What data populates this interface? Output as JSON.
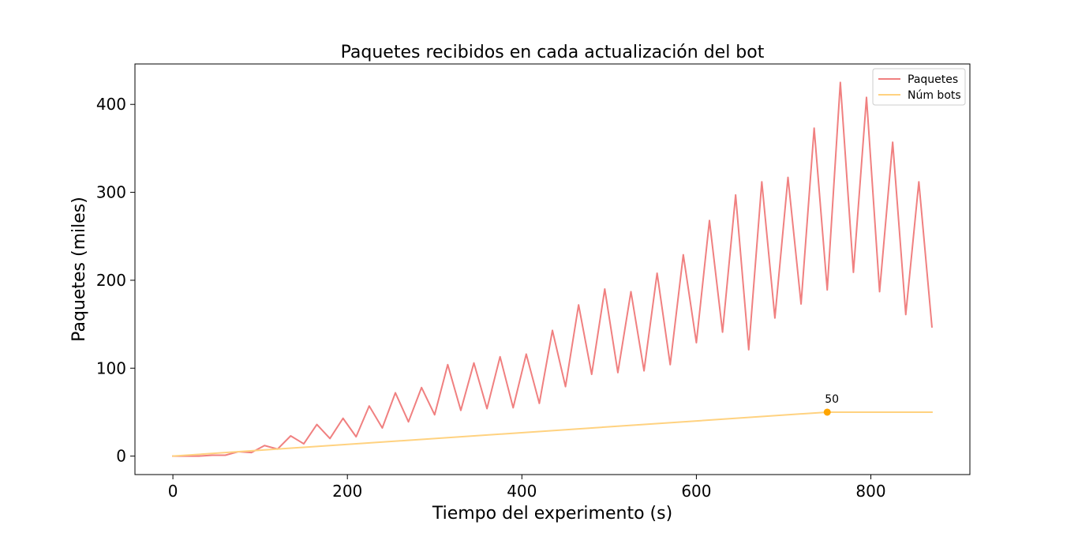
{
  "chart_data": {
    "type": "line",
    "title": "Paquetes recibidos en cada actualización del bot",
    "xlabel": "Tiempo del experimento (s)",
    "ylabel": "Paquetes (miles)",
    "xlim": [
      -43.5,
      913.5
    ],
    "ylim": [
      -21,
      446
    ],
    "xticks": [
      0,
      200,
      400,
      600,
      800
    ],
    "yticks": [
      0,
      100,
      200,
      300,
      400
    ],
    "grid": false,
    "legend_position": "upper right",
    "series": [
      {
        "name": "Paquetes",
        "color": "#f08080",
        "x": [
          0,
          15,
          30,
          45,
          60,
          75,
          90,
          105,
          120,
          135,
          150,
          165,
          180,
          195,
          210,
          225,
          240,
          255,
          270,
          285,
          300,
          315,
          330,
          345,
          360,
          375,
          390,
          405,
          420,
          435,
          450,
          465,
          480,
          495,
          510,
          525,
          540,
          555,
          570,
          585,
          600,
          615,
          630,
          645,
          660,
          675,
          690,
          705,
          720,
          735,
          750,
          765,
          780,
          795,
          810,
          825,
          840,
          855,
          870
        ],
        "y": [
          0,
          0,
          0,
          1,
          1,
          5,
          4,
          12,
          8,
          23,
          14,
          36,
          20,
          43,
          22,
          57,
          32,
          72,
          39,
          78,
          47,
          104,
          52,
          106,
          54,
          113,
          55,
          116,
          60,
          143,
          79,
          172,
          93,
          190,
          95,
          187,
          97,
          208,
          104,
          229,
          129,
          268,
          141,
          297,
          121,
          312,
          157,
          317,
          173,
          373,
          189,
          425,
          209,
          408,
          187,
          357,
          161,
          312,
          147
        ]
      },
      {
        "name": "Núm bots",
        "color": "#ffd280",
        "x": [
          0,
          750,
          870
        ],
        "y": [
          0,
          50,
          50
        ]
      }
    ],
    "annotations": [
      {
        "x": 750,
        "y": 50,
        "text": "50",
        "marker_color": "#ffa500"
      }
    ]
  }
}
